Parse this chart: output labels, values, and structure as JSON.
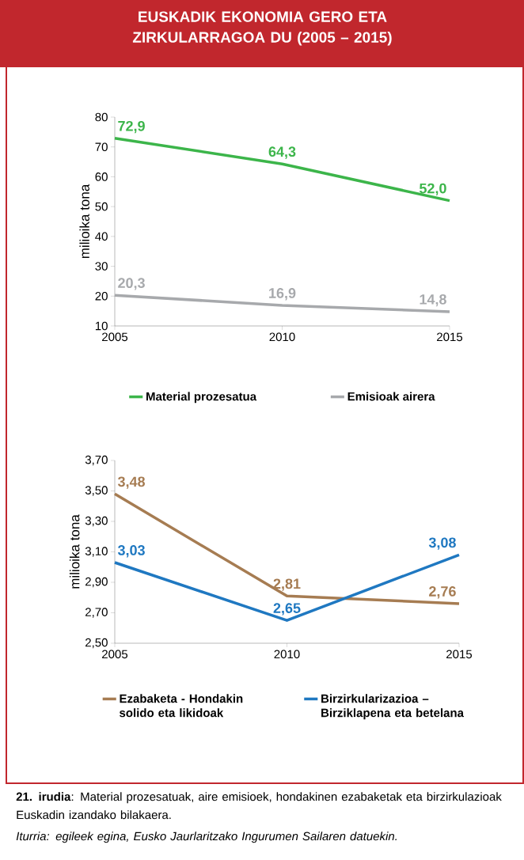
{
  "chart_data": [
    {
      "type": "line",
      "title": "EUSKADIK EKONOMIA GERO ETA ZIRKULARRAGOA DU (2005 – 2015)",
      "ylabel": "milioika tona",
      "x": [
        2005,
        2010,
        2015
      ],
      "xlim": [
        2005,
        2015
      ],
      "xticks": [
        2005,
        2010,
        2015
      ],
      "ylim": [
        10,
        80
      ],
      "yticks": [
        10,
        20,
        30,
        40,
        50,
        60,
        70,
        80
      ],
      "legend": "bottom",
      "series": [
        {
          "name": "Material prozesatua",
          "color": "#3cb54a",
          "values": [
            72.9,
            64.3,
            52.0
          ],
          "value_labels": [
            "72,9",
            "64,3",
            "52,0"
          ]
        },
        {
          "name": "Emisioak airera",
          "color": "#a7a9ac",
          "values": [
            20.3,
            16.9,
            14.8
          ],
          "value_labels": [
            "20,3",
            "16,9",
            "14,8"
          ]
        }
      ]
    },
    {
      "type": "line",
      "ylabel": "milioika tona",
      "x": [
        2005,
        2010,
        2015
      ],
      "xlim": [
        2005,
        2015
      ],
      "xticks": [
        2005,
        2010,
        2015
      ],
      "ylim": [
        2.5,
        3.7
      ],
      "yticks": [
        {
          "value": 2.5,
          "label": "2,50"
        },
        {
          "value": 2.7,
          "label": "2,70"
        },
        {
          "value": 2.9,
          "label": "2,90"
        },
        {
          "value": 3.1,
          "label": "3,10"
        },
        {
          "value": 3.3,
          "label": "3,30"
        },
        {
          "value": 3.5,
          "label": "3,50"
        },
        {
          "value": 3.7,
          "label": "3,70"
        }
      ],
      "legend": "bottom",
      "series": [
        {
          "name": "Ezabaketa - Hondakin solido eta likidoak",
          "color": "#a67c52",
          "values": [
            3.48,
            2.81,
            2.76
          ],
          "value_labels": [
            "3,48",
            "2,81",
            "2,76"
          ]
        },
        {
          "name": "Birzirkularizazioa – Birziklapena eta betelana",
          "color": "#1f78c1",
          "values": [
            3.03,
            2.65,
            3.08
          ],
          "value_labels": [
            "3,03",
            "2,65",
            "3,08"
          ]
        }
      ],
      "annotations": [
        "**21. irudia**: Material prozesatuak, aire emisioek, hondakinen ezabaketak eta birzirkulazioak Euskadin izandako bilakaera.",
        "Iturria: egileek egina, Eusko Jaurlaritzako Ingurumen Sailaren datuekin."
      ]
    }
  ]
}
